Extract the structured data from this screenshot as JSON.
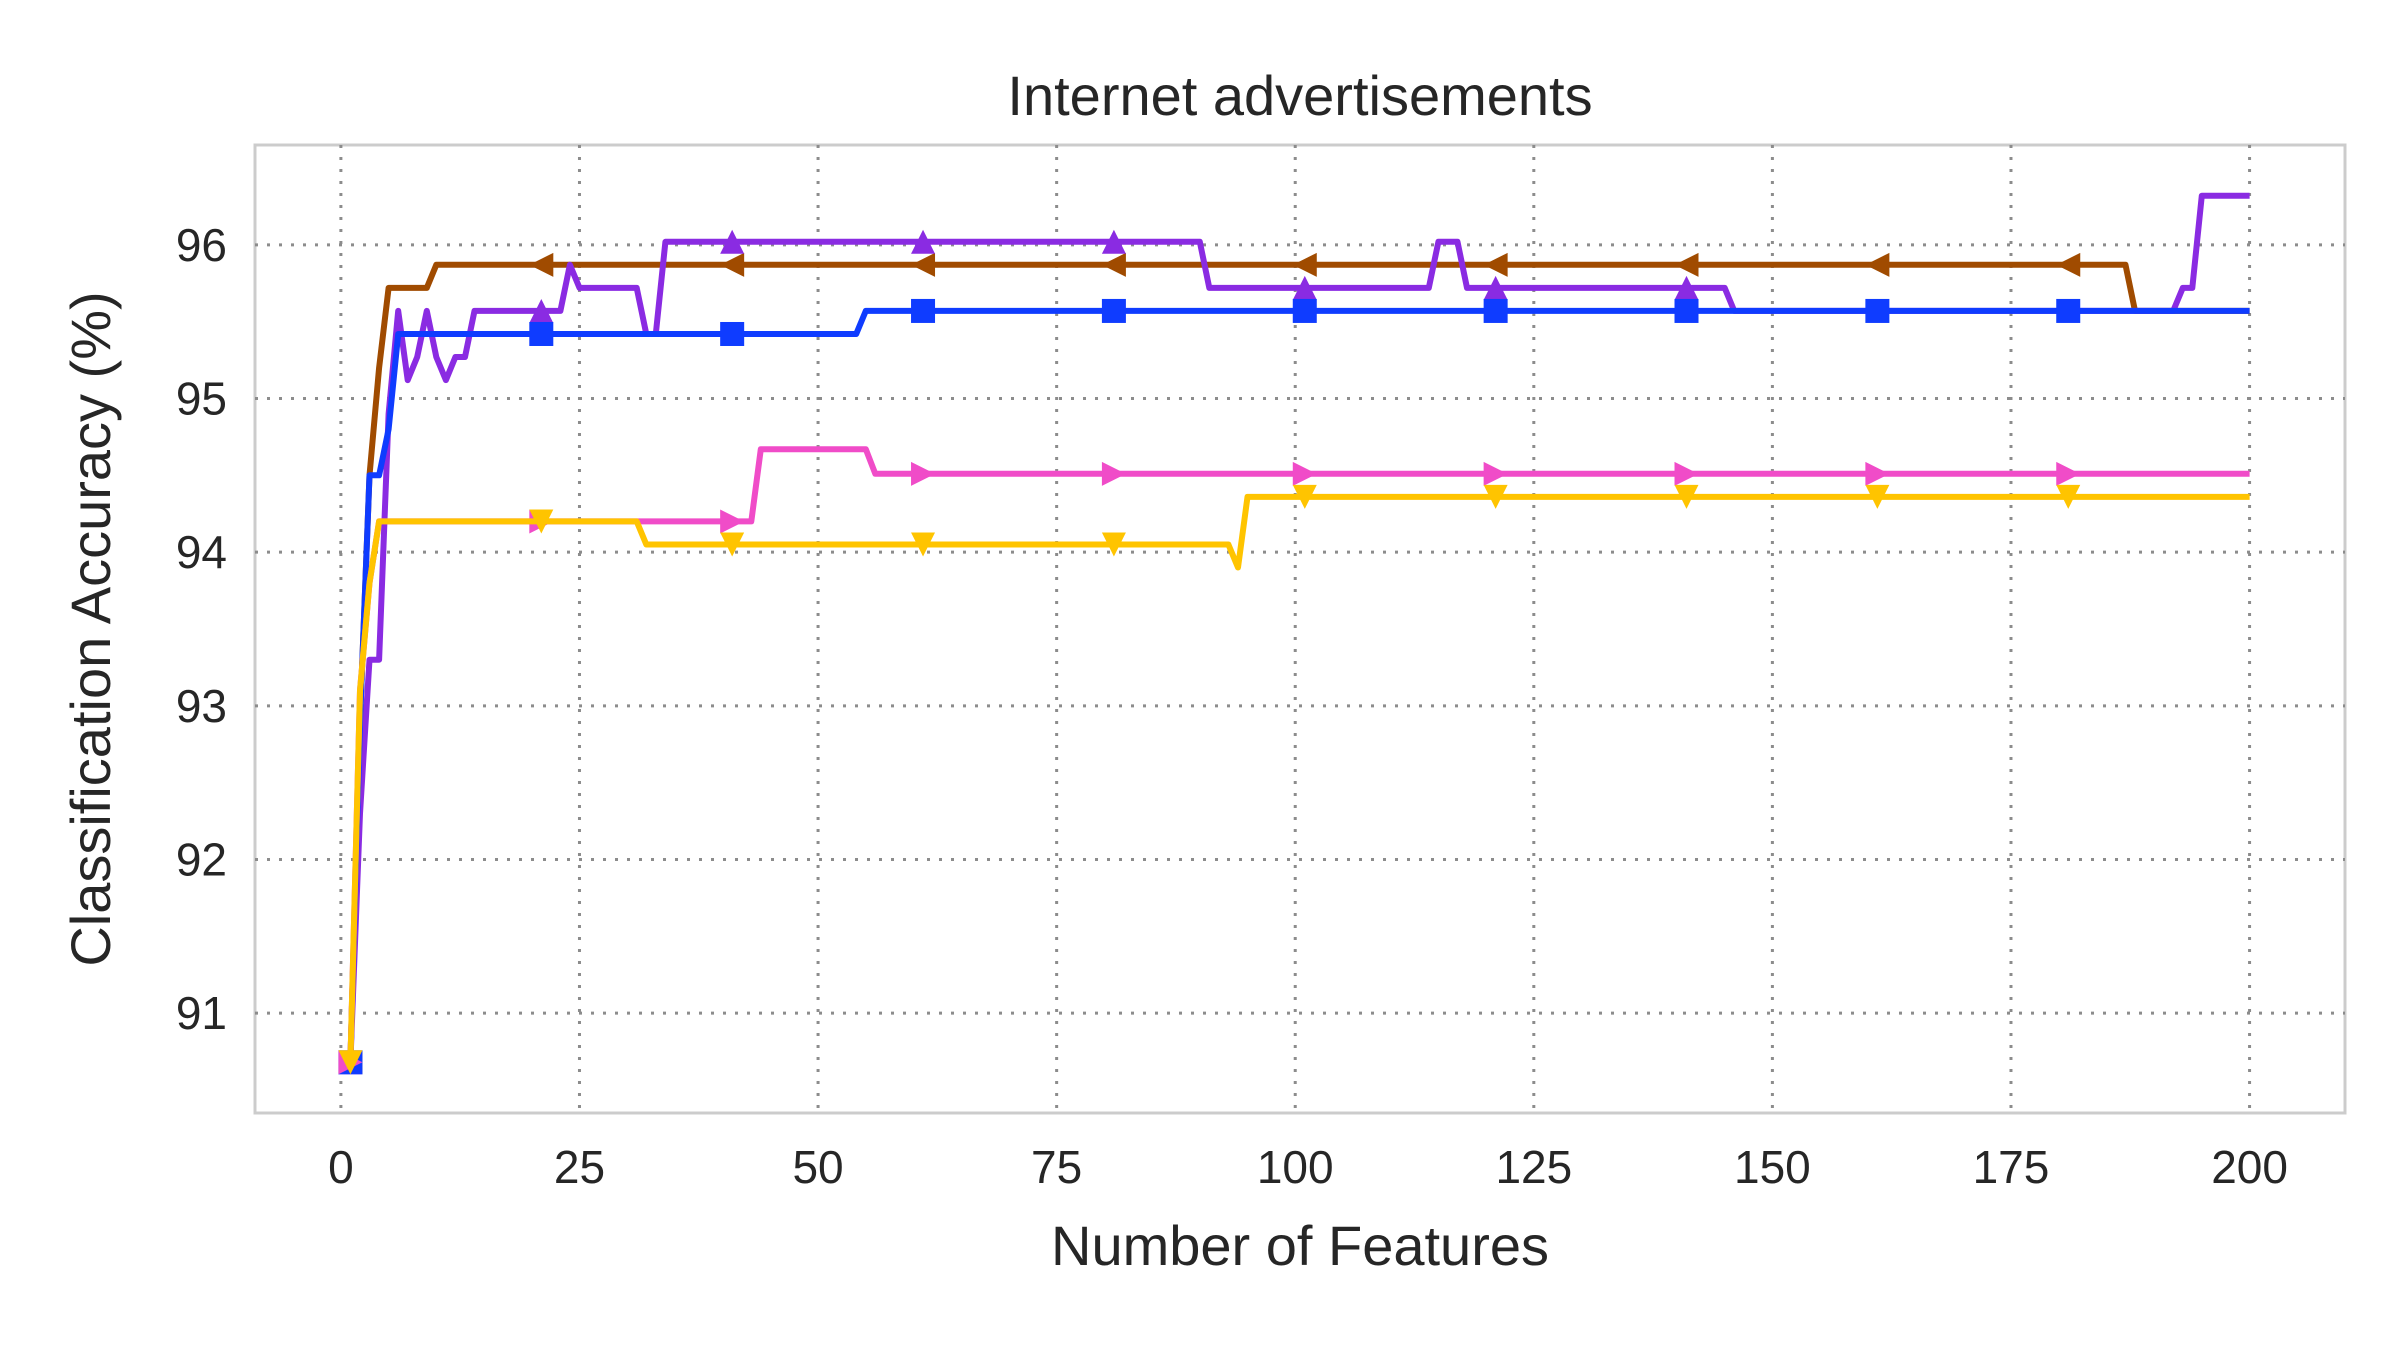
{
  "chart_data": {
    "type": "line",
    "title": "Internet advertisements",
    "xlabel": "Number of Features",
    "ylabel": "Classification Accuracy (%)",
    "xlim": [
      -9,
      210
    ],
    "ylim": [
      90.35,
      96.65
    ],
    "xticks": [
      0,
      25,
      50,
      75,
      100,
      125,
      150,
      175,
      200
    ],
    "yticks": [
      91,
      92,
      93,
      94,
      95,
      96
    ],
    "grid": true,
    "legend": "none",
    "series": [
      {
        "color": "#a04b00",
        "marker": "triangle-left",
        "points": [
          [
            1,
            90.68
          ],
          [
            2,
            92.9
          ],
          [
            3,
            94.5
          ],
          [
            4,
            95.2
          ],
          [
            5,
            95.72
          ],
          [
            9,
            95.72
          ],
          [
            10,
            95.87
          ],
          [
            187,
            95.87
          ],
          [
            188,
            95.57
          ],
          [
            200,
            95.57
          ]
        ],
        "markers": [
          [
            1,
            90.68
          ],
          [
            21,
            95.87
          ],
          [
            41,
            95.87
          ],
          [
            61,
            95.87
          ],
          [
            81,
            95.87
          ],
          [
            101,
            95.87
          ],
          [
            121,
            95.87
          ],
          [
            141,
            95.87
          ],
          [
            161,
            95.87
          ],
          [
            181,
            95.87
          ]
        ]
      },
      {
        "color": "#8a2be2",
        "marker": "triangle-up",
        "points": [
          [
            1,
            90.68
          ],
          [
            2,
            92.3
          ],
          [
            3,
            93.3
          ],
          [
            4,
            93.3
          ],
          [
            5,
            94.9
          ],
          [
            6,
            95.57
          ],
          [
            7,
            95.12
          ],
          [
            8,
            95.27
          ],
          [
            9,
            95.57
          ],
          [
            10,
            95.27
          ],
          [
            11,
            95.12
          ],
          [
            12,
            95.27
          ],
          [
            13,
            95.27
          ],
          [
            14,
            95.57
          ],
          [
            21,
            95.57
          ],
          [
            22,
            95.57
          ],
          [
            23,
            95.57
          ],
          [
            24,
            95.87
          ],
          [
            25,
            95.72
          ],
          [
            31,
            95.72
          ],
          [
            32,
            95.42
          ],
          [
            33,
            95.42
          ],
          [
            34,
            96.02
          ],
          [
            90,
            96.02
          ],
          [
            91,
            95.72
          ],
          [
            114,
            95.72
          ],
          [
            115,
            96.02
          ],
          [
            117,
            96.02
          ],
          [
            118,
            95.72
          ],
          [
            145,
            95.72
          ],
          [
            146,
            95.57
          ],
          [
            192,
            95.57
          ],
          [
            193,
            95.72
          ],
          [
            194,
            95.72
          ],
          [
            195,
            96.32
          ],
          [
            200,
            96.32
          ]
        ],
        "markers": [
          [
            1,
            90.68
          ],
          [
            21,
            95.57
          ],
          [
            41,
            96.02
          ],
          [
            61,
            96.02
          ],
          [
            81,
            96.02
          ],
          [
            101,
            95.72
          ],
          [
            121,
            95.72
          ],
          [
            141,
            95.72
          ]
        ]
      },
      {
        "color": "#0f3cff",
        "marker": "square",
        "points": [
          [
            1,
            90.68
          ],
          [
            2,
            92.9
          ],
          [
            3,
            94.5
          ],
          [
            4,
            94.5
          ],
          [
            5,
            94.8
          ],
          [
            6,
            95.42
          ],
          [
            54,
            95.42
          ],
          [
            55,
            95.57
          ],
          [
            200,
            95.57
          ]
        ],
        "markers": [
          [
            1,
            90.68
          ],
          [
            21,
            95.42
          ],
          [
            41,
            95.42
          ],
          [
            61,
            95.57
          ],
          [
            81,
            95.57
          ],
          [
            101,
            95.57
          ],
          [
            121,
            95.57
          ],
          [
            141,
            95.57
          ],
          [
            161,
            95.57
          ],
          [
            181,
            95.57
          ]
        ]
      },
      {
        "color": "#f04cc8",
        "marker": "triangle-right",
        "points": [
          [
            1,
            90.68
          ],
          [
            2,
            93.1
          ],
          [
            3,
            93.8
          ],
          [
            4,
            94.2
          ],
          [
            43,
            94.2
          ],
          [
            44,
            94.67
          ],
          [
            55,
            94.67
          ],
          [
            56,
            94.51
          ],
          [
            200,
            94.51
          ]
        ],
        "markers": [
          [
            1,
            90.68
          ],
          [
            21,
            94.2
          ],
          [
            41,
            94.2
          ],
          [
            61,
            94.51
          ],
          [
            81,
            94.51
          ],
          [
            101,
            94.51
          ],
          [
            121,
            94.51
          ],
          [
            141,
            94.51
          ],
          [
            161,
            94.51
          ],
          [
            181,
            94.51
          ]
        ]
      },
      {
        "color": "#ffc400",
        "marker": "triangle-down",
        "points": [
          [
            1,
            90.68
          ],
          [
            2,
            93.1
          ],
          [
            3,
            93.8
          ],
          [
            4,
            94.2
          ],
          [
            31,
            94.2
          ],
          [
            32,
            94.05
          ],
          [
            93,
            94.05
          ],
          [
            94,
            93.9
          ],
          [
            95,
            94.36
          ],
          [
            200,
            94.36
          ]
        ],
        "markers": [
          [
            1,
            90.68
          ],
          [
            21,
            94.2
          ],
          [
            41,
            94.05
          ],
          [
            61,
            94.05
          ],
          [
            81,
            94.05
          ],
          [
            101,
            94.36
          ],
          [
            121,
            94.36
          ],
          [
            141,
            94.36
          ],
          [
            161,
            94.36
          ],
          [
            181,
            94.36
          ]
        ]
      }
    ]
  }
}
